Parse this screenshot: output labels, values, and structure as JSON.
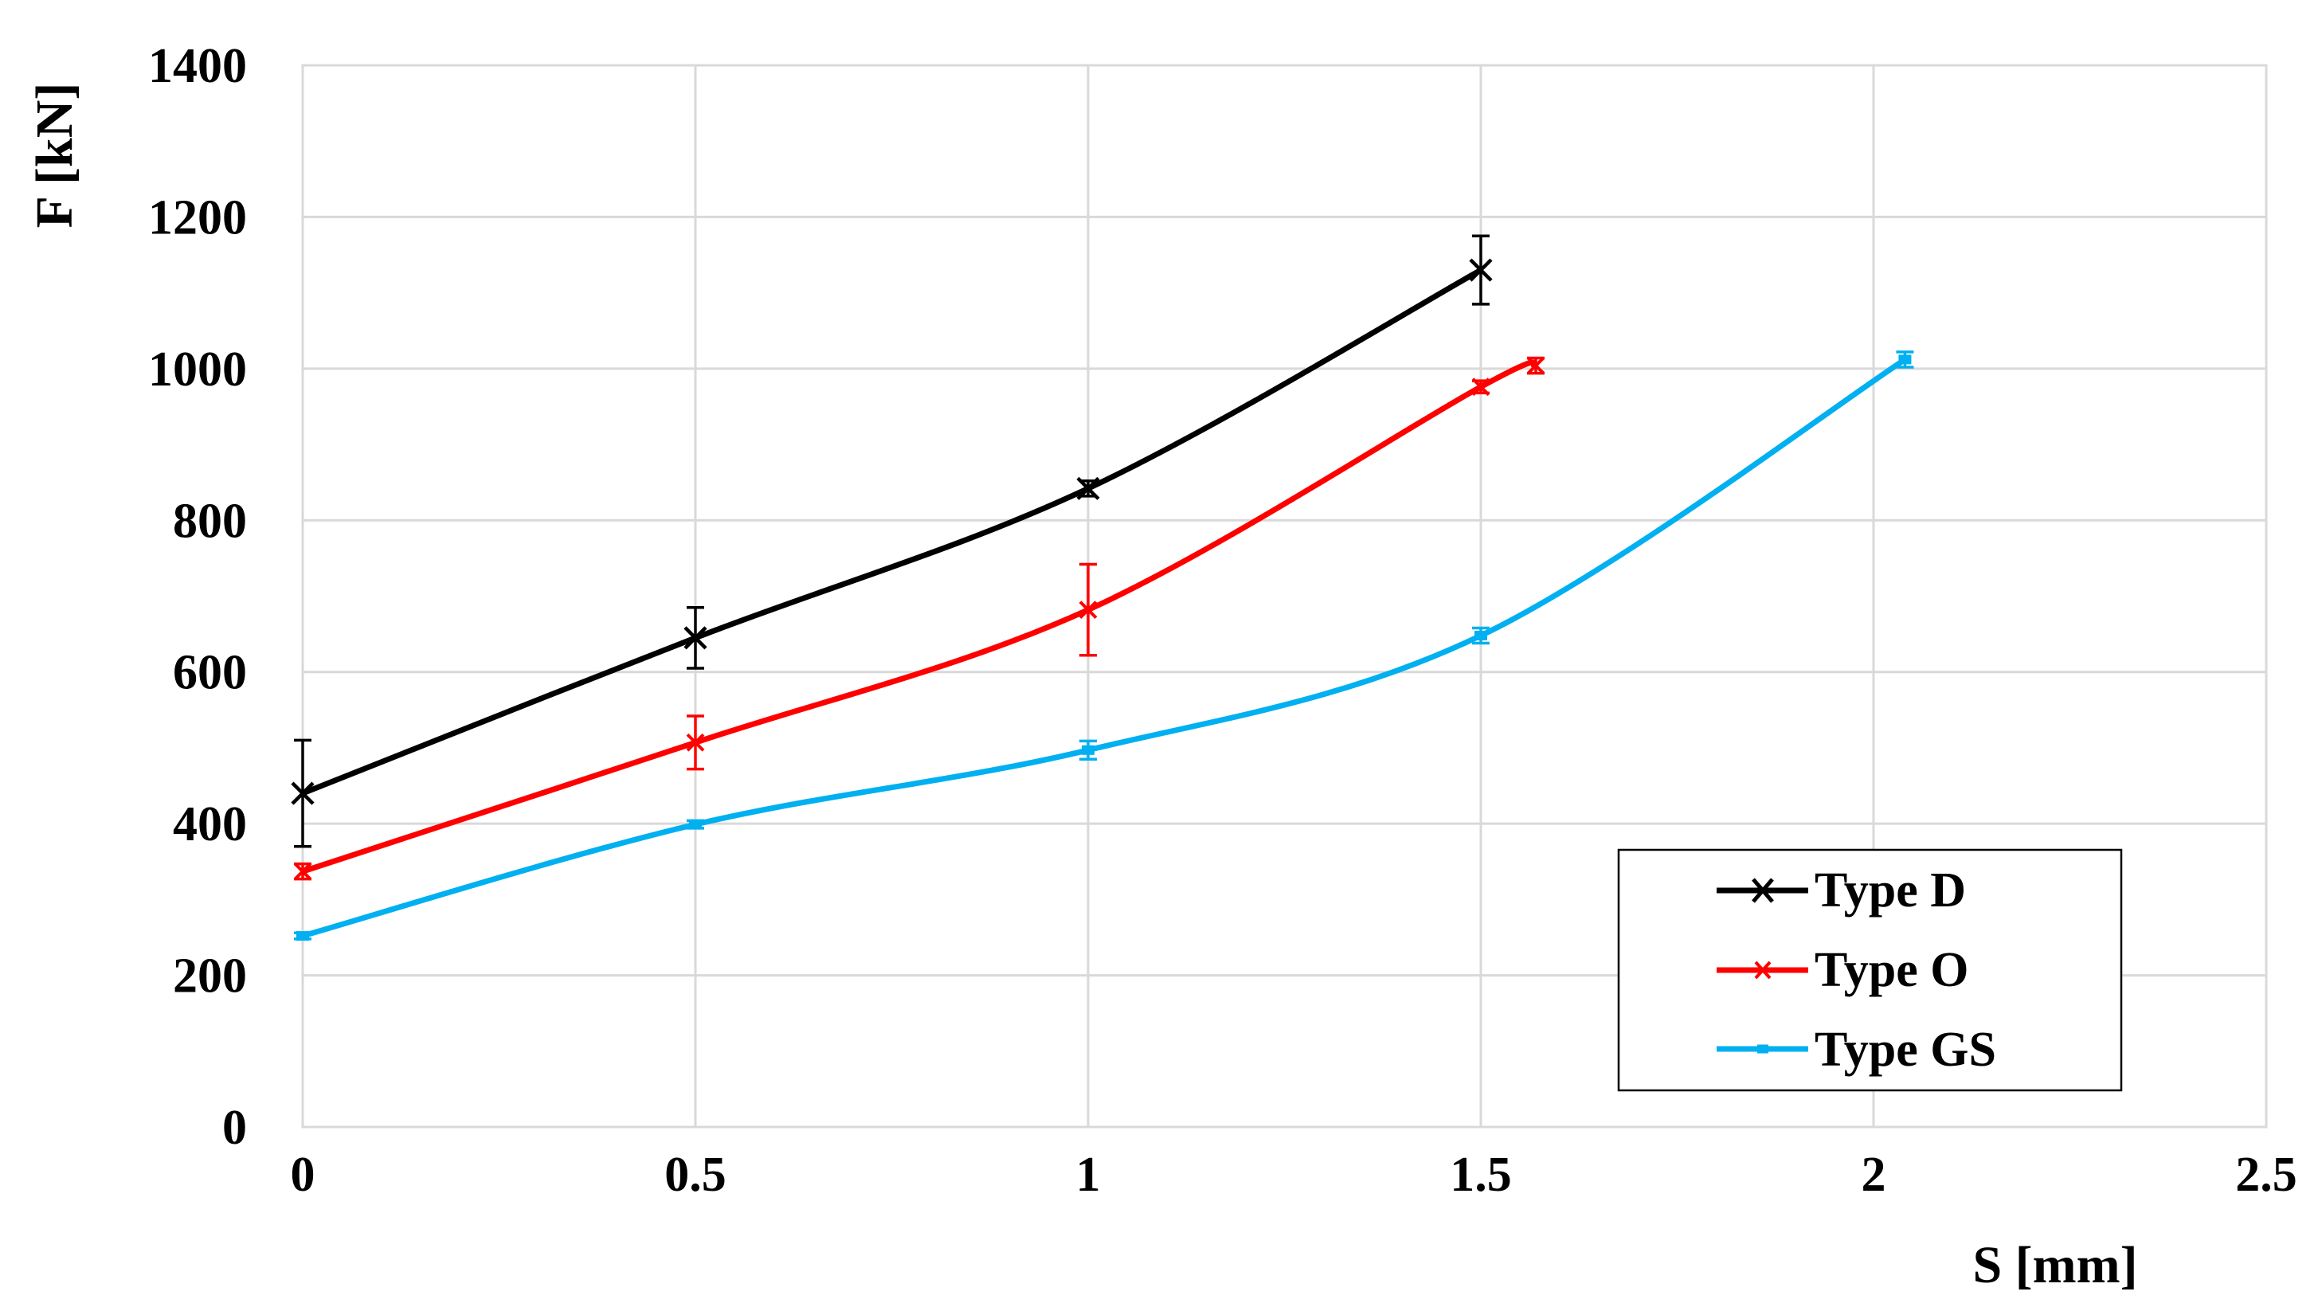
{
  "chart_data": {
    "type": "line",
    "title": "",
    "xlabel": "S [mm]",
    "ylabel": "F [kN]",
    "xlim": [
      0,
      2.5
    ],
    "ylim": [
      0,
      1400
    ],
    "x_ticks": [
      "0",
      "0.5",
      "1",
      "1.5",
      "2",
      "2.5"
    ],
    "y_ticks": [
      "0",
      "200",
      "400",
      "600",
      "800",
      "1000",
      "1200",
      "1400"
    ],
    "grid": true,
    "legend_position": "bottom-right",
    "series": [
      {
        "name": "Type D",
        "color": "#000000",
        "marker": "x",
        "x": [
          0,
          0.5,
          1,
          1.5
        ],
        "y": [
          440,
          645,
          842,
          1130
        ],
        "error": [
          70,
          40,
          10,
          45
        ]
      },
      {
        "name": "Type O",
        "color": "#ff0000",
        "marker": "x",
        "x": [
          0,
          0.5,
          1,
          1.5,
          1.57
        ],
        "y": [
          337,
          507,
          682,
          976,
          1004
        ],
        "error": [
          10,
          35,
          60,
          8,
          10
        ]
      },
      {
        "name": "Type GS",
        "color": "#00b0f0",
        "marker": "dash",
        "x": [
          0,
          0.5,
          1,
          1.5,
          2.04
        ],
        "y": [
          252,
          399,
          497,
          648,
          1012
        ],
        "error": [
          4,
          5,
          12,
          10,
          10
        ]
      }
    ]
  }
}
